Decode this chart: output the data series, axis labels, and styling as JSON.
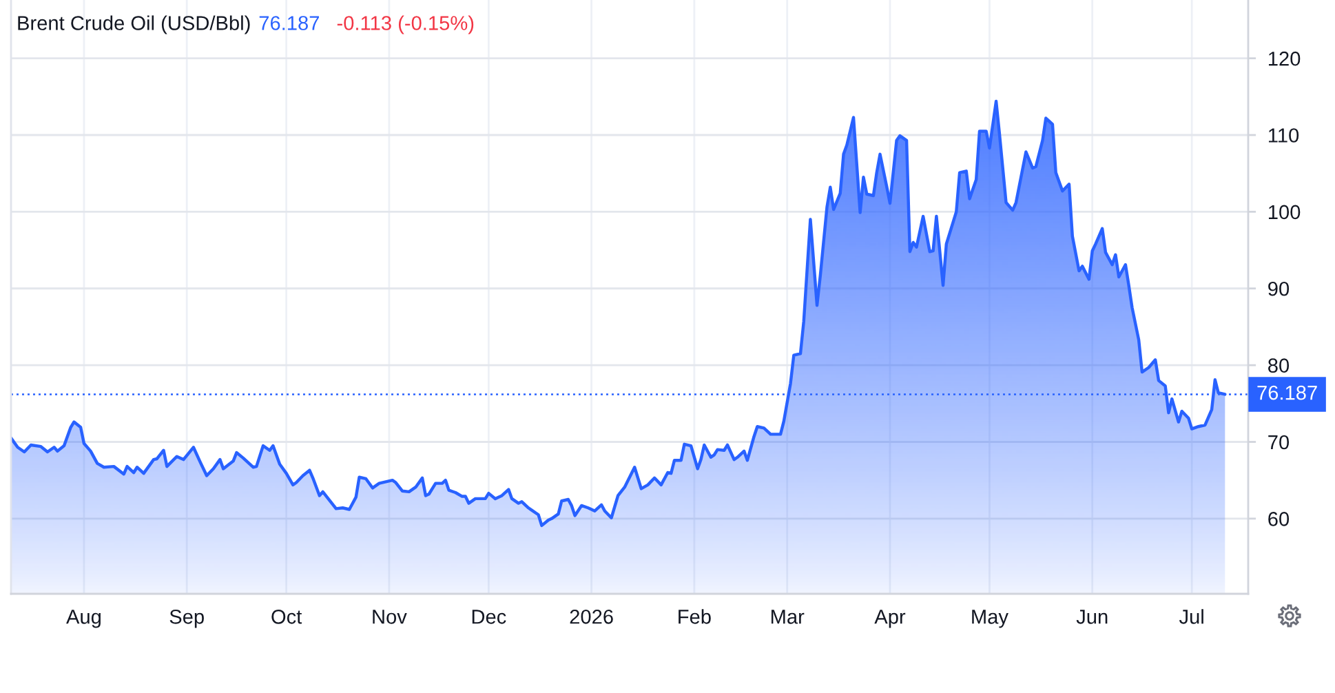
{
  "chart_data": {
    "type": "area",
    "title": "Brent Crude Oil (USD/Bbl)",
    "annotations": [
      "76.187",
      "-0.113 (-0.15%)"
    ],
    "x": [
      "2025-07-10",
      "2025-07-12",
      "2025-07-14",
      "2025-07-16",
      "2025-07-19",
      "2025-07-21",
      "2025-07-23",
      "2025-07-24",
      "2025-07-26",
      "2025-07-28",
      "2025-07-29",
      "2025-07-31",
      "2025-08-01",
      "2025-08-03",
      "2025-08-05",
      "2025-08-07",
      "2025-08-10",
      "2025-08-13",
      "2025-08-14",
      "2025-08-16",
      "2025-08-17",
      "2025-08-19",
      "2025-08-22",
      "2025-08-23",
      "2025-08-25",
      "2025-08-26",
      "2025-08-29",
      "2025-08-31",
      "2025-09-03",
      "2025-09-05",
      "2025-09-07",
      "2025-09-09",
      "2025-09-11",
      "2025-09-12",
      "2025-09-15",
      "2025-09-16",
      "2025-09-18",
      "2025-09-21",
      "2025-09-22",
      "2025-09-24",
      "2025-09-26",
      "2025-09-27",
      "2025-09-29",
      "2025-10-01",
      "2025-10-03",
      "2025-10-04",
      "2025-10-06",
      "2025-10-08",
      "2025-10-09",
      "2025-10-11",
      "2025-10-12",
      "2025-10-14",
      "2025-10-16",
      "2025-10-18",
      "2025-10-20",
      "2025-10-22",
      "2025-10-23",
      "2025-10-25",
      "2025-10-27",
      "2025-10-29",
      "2025-11-02",
      "2025-11-03",
      "2025-11-05",
      "2025-11-07",
      "2025-11-09",
      "2025-11-11",
      "2025-11-12",
      "2025-11-13",
      "2025-11-15",
      "2025-11-17",
      "2025-11-18",
      "2025-11-19",
      "2025-11-21",
      "2025-11-23",
      "2025-11-24",
      "2025-11-25",
      "2025-11-27",
      "2025-11-30",
      "2025-12-01",
      "2025-12-03",
      "2025-12-05",
      "2025-12-07",
      "2025-12-08",
      "2025-12-10",
      "2025-12-11",
      "2025-12-13",
      "2025-12-14",
      "2025-12-16",
      "2025-12-17",
      "2025-12-19",
      "2025-12-20",
      "2025-12-22",
      "2025-12-23",
      "2025-12-25",
      "2025-12-26",
      "2025-12-27",
      "2025-12-29",
      "2025-12-31",
      "2026-01-02",
      "2026-01-04",
      "2026-01-05",
      "2026-01-07",
      "2026-01-09",
      "2026-01-11",
      "2026-01-14",
      "2026-01-16",
      "2026-01-18",
      "2026-01-20",
      "2026-01-22",
      "2026-01-24",
      "2026-01-25",
      "2026-01-26",
      "2026-01-28",
      "2026-01-29",
      "2026-01-31",
      "2026-02-02",
      "2026-02-03",
      "2026-02-04",
      "2026-02-06",
      "2026-02-07",
      "2026-02-08",
      "2026-02-10",
      "2026-02-11",
      "2026-02-13",
      "2026-02-14",
      "2026-02-16",
      "2026-02-17",
      "2026-02-19",
      "2026-02-20",
      "2026-02-22",
      "2026-02-24",
      "2026-02-27",
      "2026-02-28",
      "2026-03-02",
      "2026-03-03",
      "2026-03-05",
      "2026-03-06",
      "2026-03-08",
      "2026-03-10",
      "2026-03-11",
      "2026-03-13",
      "2026-03-14",
      "2026-03-15",
      "2026-03-17",
      "2026-03-18",
      "2026-03-19",
      "2026-03-21",
      "2026-03-23",
      "2026-03-24",
      "2026-03-25",
      "2026-03-27",
      "2026-03-28",
      "2026-03-29",
      "2026-03-31",
      "2026-04-01",
      "2026-04-03",
      "2026-04-04",
      "2026-04-06",
      "2026-04-07",
      "2026-04-08",
      "2026-04-09",
      "2026-04-11",
      "2026-04-13",
      "2026-04-14",
      "2026-04-15",
      "2026-04-17",
      "2026-04-18",
      "2026-04-21",
      "2026-04-22",
      "2026-04-24",
      "2026-04-25",
      "2026-04-27",
      "2026-04-28",
      "2026-04-30",
      "2026-05-01",
      "2026-05-03",
      "2026-05-04",
      "2026-05-06",
      "2026-05-08",
      "2026-05-09",
      "2026-05-12",
      "2026-05-14",
      "2026-05-15",
      "2026-05-17",
      "2026-05-18",
      "2026-05-20",
      "2026-05-21",
      "2026-05-23",
      "2026-05-25",
      "2026-05-26",
      "2026-05-28",
      "2026-05-29",
      "2026-05-31",
      "2026-06-01",
      "2026-06-02",
      "2026-06-04",
      "2026-06-05",
      "2026-06-07",
      "2026-06-08",
      "2026-06-09",
      "2026-06-11",
      "2026-06-12",
      "2026-06-13",
      "2026-06-15",
      "2026-06-16",
      "2026-06-18",
      "2026-06-20",
      "2026-06-21",
      "2026-06-23",
      "2026-06-24",
      "2026-06-25",
      "2026-06-27",
      "2026-06-28",
      "2026-06-30",
      "2026-07-01",
      "2026-07-03",
      "2026-07-05",
      "2026-07-07",
      "2026-07-08",
      "2026-07-09",
      "2026-07-11"
    ],
    "series": [
      {
        "color": "#2962ff",
        "values": [
          70.5,
          69.3,
          68.7,
          69.6,
          69.4,
          68.7,
          69.3,
          68.8,
          69.5,
          71.9,
          72.6,
          71.9,
          69.8,
          68.8,
          67.2,
          66.7,
          66.8,
          65.8,
          66.8,
          66.0,
          66.7,
          65.9,
          67.7,
          67.8,
          68.9,
          66.8,
          68.1,
          67.7,
          69.3,
          67.4,
          65.6,
          66.5,
          67.7,
          66.5,
          67.5,
          68.6,
          67.9,
          66.7,
          66.8,
          69.5,
          68.9,
          69.5,
          67.1,
          65.9,
          64.4,
          64.7,
          65.6,
          66.3,
          65.3,
          63.0,
          63.5,
          62.4,
          61.3,
          61.4,
          61.2,
          62.8,
          65.4,
          65.2,
          64.0,
          64.6,
          65.0,
          64.7,
          63.6,
          63.5,
          64.1,
          65.3,
          63.0,
          63.2,
          64.6,
          64.6,
          65.0,
          63.7,
          63.4,
          62.9,
          62.9,
          62.0,
          62.6,
          62.6,
          63.3,
          62.6,
          63.0,
          63.8,
          62.6,
          62.0,
          62.2,
          61.4,
          61.1,
          60.5,
          59.1,
          59.8,
          60.0,
          60.6,
          62.3,
          62.5,
          61.7,
          60.4,
          61.7,
          61.4,
          61.0,
          61.8,
          61.0,
          60.1,
          63.0,
          64.1,
          66.7,
          63.9,
          64.4,
          65.3,
          64.4,
          66.0,
          65.9,
          67.6,
          67.6,
          69.7,
          69.5,
          66.5,
          67.7,
          69.6,
          68.0,
          68.3,
          69.0,
          68.9,
          69.6,
          67.7,
          68.0,
          68.8,
          67.6,
          70.7,
          72.0,
          71.8,
          71.0,
          71.0,
          72.7,
          77.6,
          81.3,
          81.5,
          85.7,
          99.0,
          87.8,
          91.7,
          100.6,
          103.2,
          100.3,
          102.4,
          107.5,
          108.7,
          112.3,
          99.9,
          104.5,
          102.3,
          102.1,
          105.1,
          107.5,
          103.3,
          101.1,
          109.3,
          109.9,
          109.3,
          94.8,
          96.0,
          95.4,
          99.4,
          94.8,
          94.9,
          99.4,
          90.4,
          95.8,
          100.0,
          105.1,
          105.3,
          101.7,
          104.2,
          110.5,
          110.5,
          108.3,
          114.4,
          110.2,
          101.2,
          100.2,
          101.2,
          107.8,
          105.7,
          105.9,
          109.3,
          112.2,
          111.4,
          105.1,
          102.7,
          103.6,
          96.8,
          92.3,
          92.9,
          91.2,
          94.9,
          95.8,
          97.8,
          94.7,
          93.1,
          94.4,
          91.5,
          93.1,
          90.4,
          87.5,
          83.3,
          79.1,
          79.7,
          80.7,
          78.0,
          77.3,
          73.8,
          75.6,
          72.6,
          74.0,
          73.1,
          71.7,
          72.0,
          72.2,
          74.2,
          78.1,
          76.4,
          76.2
        ]
      }
    ],
    "xlim": [
      "2025-07-10",
      "2026-07-18"
    ],
    "xticks": [
      {
        "value": "2025-08-01",
        "label": "Aug"
      },
      {
        "value": "2025-09-01",
        "label": "Sep"
      },
      {
        "value": "2025-10-01",
        "label": "Oct"
      },
      {
        "value": "2025-11-01",
        "label": "Nov"
      },
      {
        "value": "2025-12-01",
        "label": "Dec"
      },
      {
        "value": "2026-01-01",
        "label": "2026"
      },
      {
        "value": "2026-02-01",
        "label": "Feb"
      },
      {
        "value": "2026-03-01",
        "label": "Mar"
      },
      {
        "value": "2026-04-01",
        "label": "Apr"
      },
      {
        "value": "2026-05-01",
        "label": "May"
      },
      {
        "value": "2026-06-01",
        "label": "Jun"
      },
      {
        "value": "2026-07-01",
        "label": "Jul"
      }
    ],
    "ylim": [
      50.2,
      127.6
    ],
    "yticks": [
      60,
      70,
      80,
      90,
      100,
      110,
      120
    ],
    "grid": true,
    "ref_lines": [
      {
        "axis": "y",
        "value": 76.187,
        "label": "76.187",
        "color": "#2962ff",
        "line_style": "dotted"
      }
    ]
  }
}
